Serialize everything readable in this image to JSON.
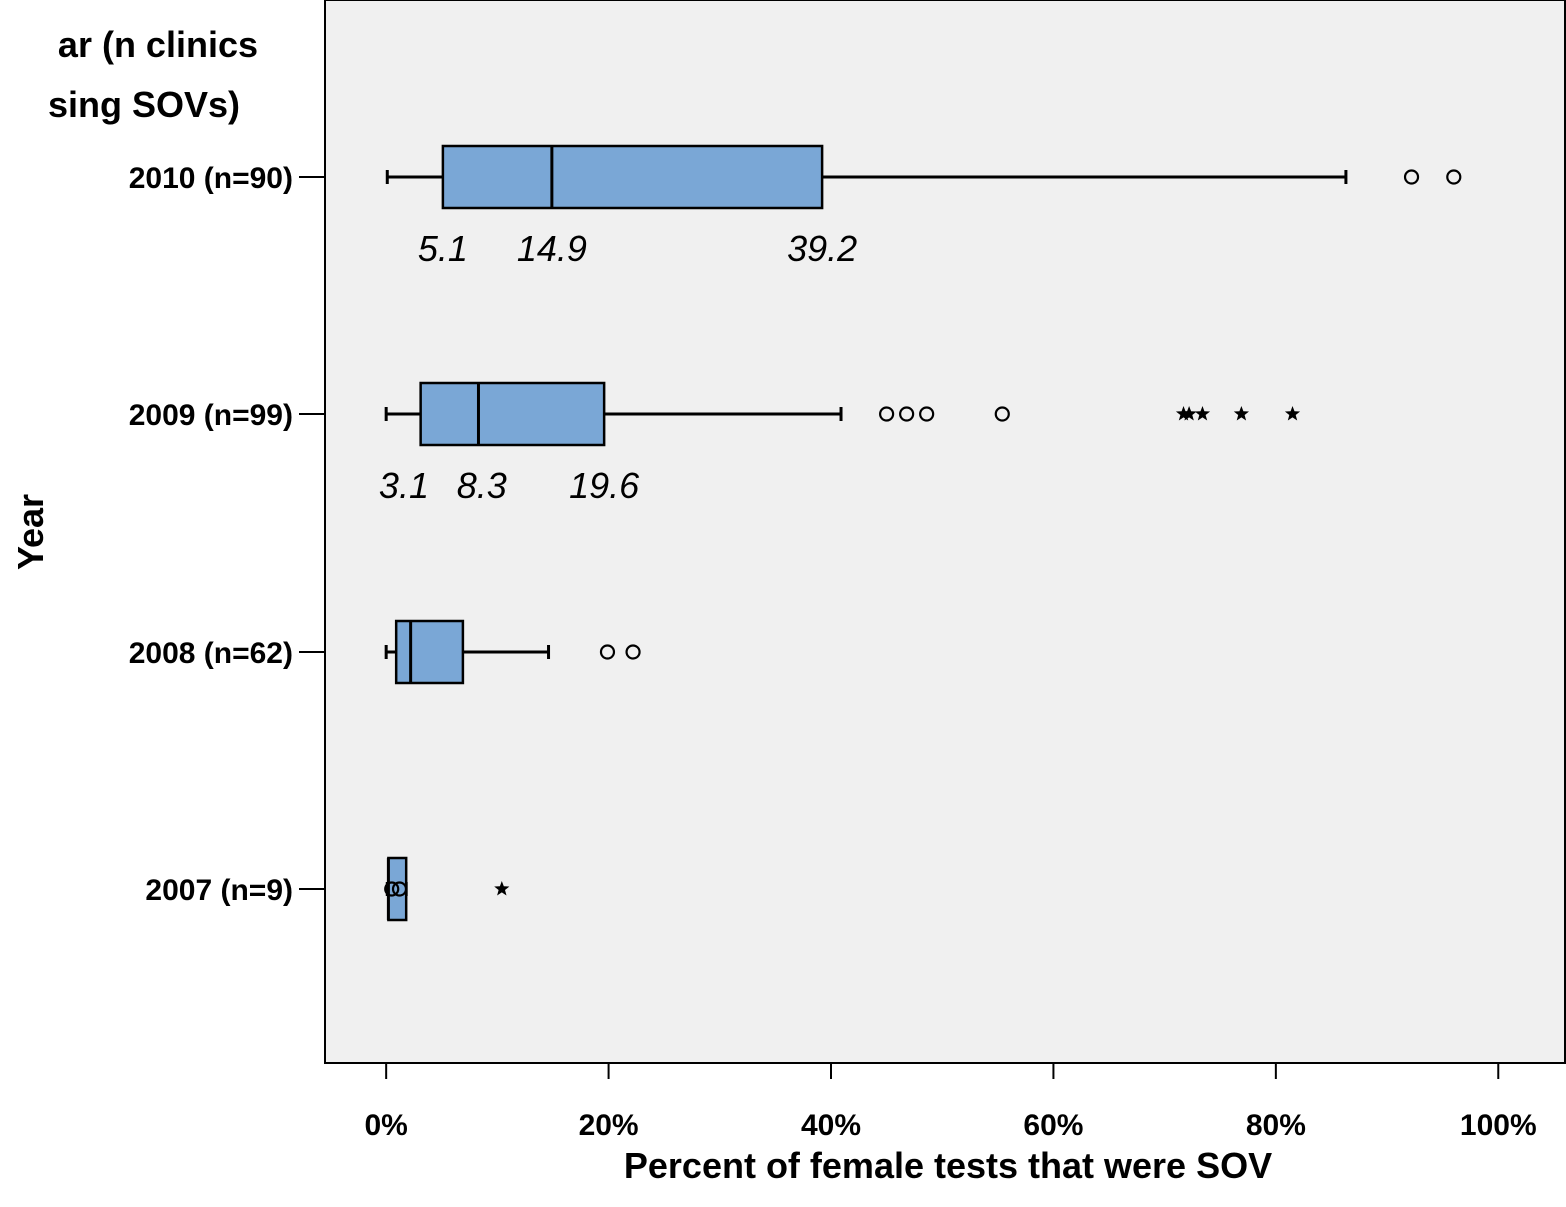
{
  "chart_data": {
    "type": "boxplot",
    "orientation": "horizontal",
    "xlabel": "Percent of female tests that were SOV",
    "ylabel": "Year",
    "ylabel_top": [
      "ar (n clinics",
      "sing SOVs)"
    ],
    "xlim": [
      -5.5,
      106
    ],
    "x_ticks": [
      0,
      20,
      40,
      60,
      80,
      100
    ],
    "x_tick_labels": [
      "0%",
      "20%",
      "40%",
      "60%",
      "80%",
      "100%"
    ],
    "grid": false,
    "box_color": "#7aa7d6",
    "plot_background": "#f0f0f0",
    "series": [
      {
        "category": "2010 (n=90)",
        "whisker_low": 0.1,
        "q1": 5.1,
        "median": 14.9,
        "q3": 39.2,
        "whisker_high": 86.3,
        "outliers": [
          92.2,
          96.0
        ],
        "extremes": [],
        "annotations": [
          {
            "text": "5.1",
            "x": 5.1
          },
          {
            "text": "14.9",
            "x": 14.9
          },
          {
            "text": "39.2",
            "x": 39.2
          }
        ]
      },
      {
        "category": "2009 (n=99)",
        "whisker_low": 0.0,
        "q1": 3.1,
        "median": 8.3,
        "q3": 19.6,
        "whisker_high": 40.9,
        "outliers": [
          45.0,
          46.8,
          48.6,
          55.4
        ],
        "extremes": [
          71.7,
          72.2,
          73.4,
          76.9,
          81.5
        ],
        "annotations": [
          {
            "text": "3.1",
            "x": 1.6
          },
          {
            "text": "8.3",
            "x": 8.6
          },
          {
            "text": "19.6",
            "x": 19.6
          }
        ]
      },
      {
        "category": "2008 (n=62)",
        "whisker_low": 0.0,
        "q1": 0.9,
        "median": 2.2,
        "q3": 6.9,
        "whisker_high": 14.6,
        "outliers": [
          19.9,
          22.2
        ],
        "extremes": [],
        "annotations": []
      },
      {
        "category": "2007 (n=9)",
        "whisker_low": 0.1,
        "q1": 0.2,
        "median": 0.2,
        "q3": 1.8,
        "whisker_high": 1.8,
        "outliers": [
          0.5,
          1.2
        ],
        "extremes": [
          10.4
        ],
        "annotations": []
      }
    ]
  }
}
